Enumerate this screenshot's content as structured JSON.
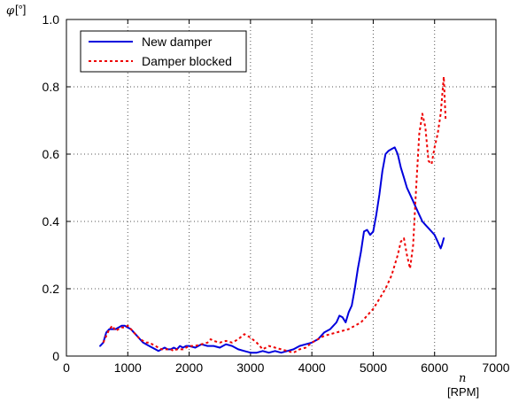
{
  "chart_data": {
    "type": "line",
    "ylabel_symbol": "φ",
    "ylabel_unit": "[°]",
    "xlabel_symbol": "n",
    "xlabel_unit": "[RPM]",
    "xlim": [
      0,
      7000
    ],
    "ylim": [
      0,
      1.0
    ],
    "xticks": [
      0,
      1000,
      2000,
      3000,
      4000,
      5000,
      6000,
      7000
    ],
    "xtick_labels": [
      "0",
      "1000",
      "2000",
      "3000",
      "4000",
      "5000",
      "6000",
      "7000"
    ],
    "yticks": [
      0,
      0.2,
      0.4,
      0.6,
      0.8,
      1.0
    ],
    "ytick_labels": [
      "0",
      "0.2",
      "0.4",
      "0.6",
      "0.8",
      "1.0"
    ],
    "grid": true,
    "legend_position": "top-left",
    "series": [
      {
        "name": "New damper",
        "color": "#0000dd",
        "dash": "solid",
        "x": [
          550,
          600,
          650,
          700,
          750,
          800,
          850,
          900,
          950,
          1000,
          1050,
          1100,
          1150,
          1200,
          1250,
          1300,
          1350,
          1400,
          1450,
          1500,
          1550,
          1600,
          1650,
          1700,
          1750,
          1800,
          1850,
          1900,
          1950,
          2000,
          2100,
          2200,
          2300,
          2400,
          2500,
          2600,
          2700,
          2800,
          2900,
          3000,
          3100,
          3200,
          3300,
          3400,
          3500,
          3600,
          3700,
          3800,
          3900,
          4000,
          4100,
          4200,
          4300,
          4400,
          4450,
          4500,
          4550,
          4600,
          4650,
          4700,
          4750,
          4800,
          4850,
          4900,
          4950,
          5000,
          5050,
          5100,
          5150,
          5200,
          5250,
          5300,
          5350,
          5400,
          5450,
          5500,
          5550,
          5600,
          5650,
          5700,
          5750,
          5800,
          5850,
          5900,
          5950,
          6000,
          6050,
          6100,
          6120,
          6150
        ],
        "y": [
          0.03,
          0.04,
          0.07,
          0.08,
          0.08,
          0.08,
          0.085,
          0.09,
          0.09,
          0.085,
          0.08,
          0.07,
          0.06,
          0.05,
          0.04,
          0.035,
          0.03,
          0.025,
          0.02,
          0.015,
          0.02,
          0.025,
          0.02,
          0.02,
          0.025,
          0.02,
          0.03,
          0.025,
          0.03,
          0.03,
          0.025,
          0.035,
          0.03,
          0.03,
          0.025,
          0.035,
          0.03,
          0.02,
          0.015,
          0.01,
          0.01,
          0.015,
          0.01,
          0.015,
          0.01,
          0.015,
          0.02,
          0.03,
          0.035,
          0.04,
          0.05,
          0.07,
          0.08,
          0.1,
          0.12,
          0.115,
          0.1,
          0.13,
          0.15,
          0.2,
          0.26,
          0.31,
          0.37,
          0.375,
          0.36,
          0.37,
          0.42,
          0.48,
          0.55,
          0.6,
          0.61,
          0.615,
          0.62,
          0.6,
          0.56,
          0.53,
          0.5,
          0.48,
          0.46,
          0.44,
          0.42,
          0.4,
          0.39,
          0.38,
          0.37,
          0.36,
          0.34,
          0.32,
          0.33,
          0.35
        ]
      },
      {
        "name": "Damper blocked",
        "color": "#ee0000",
        "dash": "dotted",
        "x": [
          600,
          650,
          700,
          750,
          800,
          850,
          900,
          950,
          1000,
          1050,
          1100,
          1150,
          1200,
          1250,
          1300,
          1350,
          1400,
          1450,
          1500,
          1550,
          1600,
          1650,
          1700,
          1750,
          1800,
          1850,
          1900,
          1950,
          2000,
          2100,
          2200,
          2300,
          2350,
          2400,
          2500,
          2600,
          2700,
          2800,
          2900,
          3000,
          3100,
          3200,
          3300,
          3400,
          3500,
          3600,
          3700,
          3800,
          3900,
          4000,
          4100,
          4200,
          4300,
          4400,
          4500,
          4600,
          4700,
          4800,
          4900,
          5000,
          5100,
          5200,
          5300,
          5400,
          5450,
          5500,
          5550,
          5600,
          5650,
          5700,
          5750,
          5800,
          5850,
          5900,
          5950,
          6000,
          6050,
          6100,
          6150,
          6180
        ],
        "y": [
          0.04,
          0.06,
          0.08,
          0.09,
          0.075,
          0.08,
          0.085,
          0.085,
          0.09,
          0.08,
          0.07,
          0.06,
          0.05,
          0.045,
          0.04,
          0.04,
          0.035,
          0.03,
          0.025,
          0.02,
          0.02,
          0.02,
          0.02,
          0.015,
          0.02,
          0.02,
          0.02,
          0.025,
          0.03,
          0.03,
          0.035,
          0.04,
          0.05,
          0.045,
          0.04,
          0.045,
          0.04,
          0.05,
          0.065,
          0.055,
          0.04,
          0.02,
          0.03,
          0.025,
          0.02,
          0.015,
          0.01,
          0.02,
          0.025,
          0.04,
          0.05,
          0.06,
          0.065,
          0.07,
          0.075,
          0.08,
          0.09,
          0.1,
          0.12,
          0.14,
          0.17,
          0.2,
          0.24,
          0.3,
          0.34,
          0.35,
          0.3,
          0.26,
          0.33,
          0.5,
          0.66,
          0.72,
          0.68,
          0.58,
          0.57,
          0.62,
          0.66,
          0.72,
          0.83,
          0.7
        ]
      }
    ]
  }
}
